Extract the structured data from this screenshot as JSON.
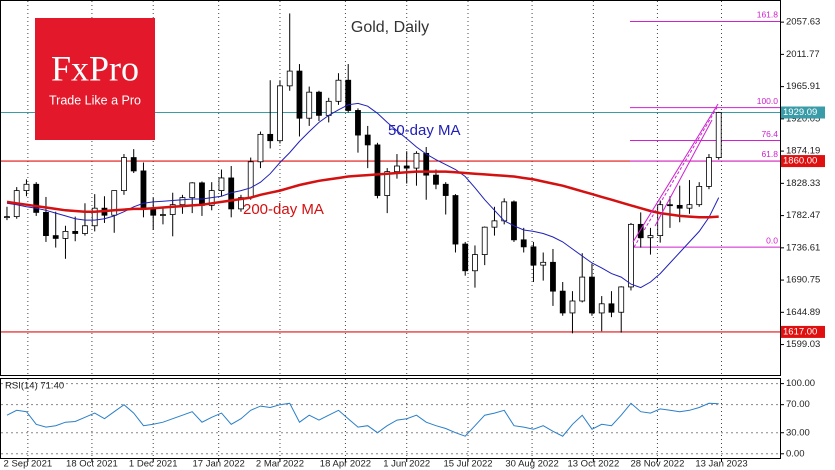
{
  "logo": {
    "title": "FxPro",
    "tagline": "Trade Like a Pro"
  },
  "chart_data": {
    "type": "candlestick",
    "title": "Gold, Daily",
    "x": [
      "2021-08-18",
      "2021-08-25",
      "2021-09-01",
      "2021-09-08",
      "2021-09-15",
      "2021-09-22",
      "2021-09-29",
      "2021-10-06",
      "2021-10-13",
      "2021-10-20",
      "2021-10-27",
      "2021-11-03",
      "2021-11-10",
      "2021-11-17",
      "2021-11-24",
      "2021-12-01",
      "2021-12-08",
      "2021-12-15",
      "2021-12-22",
      "2021-12-29",
      "2022-01-05",
      "2022-01-12",
      "2022-01-19",
      "2022-01-26",
      "2022-02-02",
      "2022-02-09",
      "2022-02-16",
      "2022-02-23",
      "2022-03-02",
      "2022-03-09",
      "2022-03-16",
      "2022-03-23",
      "2022-03-30",
      "2022-04-06",
      "2022-04-13",
      "2022-04-20",
      "2022-04-27",
      "2022-05-04",
      "2022-05-11",
      "2022-05-18",
      "2022-05-25",
      "2022-06-01",
      "2022-06-08",
      "2022-06-15",
      "2022-06-22",
      "2022-06-29",
      "2022-07-06",
      "2022-07-13",
      "2022-07-20",
      "2022-07-27",
      "2022-08-03",
      "2022-08-10",
      "2022-08-17",
      "2022-08-24",
      "2022-08-31",
      "2022-09-07",
      "2022-09-14",
      "2022-09-21",
      "2022-09-28",
      "2022-10-05",
      "2022-10-12",
      "2022-10-19",
      "2022-10-26",
      "2022-11-02",
      "2022-11-09",
      "2022-11-16",
      "2022-11-23",
      "2022-11-30",
      "2022-12-07",
      "2022-12-14",
      "2022-12-21",
      "2022-12-28",
      "2023-01-04",
      "2023-01-11"
    ],
    "open": [
      1780,
      1781,
      1818,
      1827,
      1787,
      1754,
      1750,
      1760,
      1757,
      1768,
      1793,
      1783,
      1818,
      1865,
      1846,
      1792,
      1783,
      1784,
      1798,
      1808,
      1829,
      1797,
      1818,
      1836,
      1792,
      1808,
      1859,
      1898,
      1889,
      1967,
      1988,
      1921,
      1958,
      1925,
      1945,
      1975,
      1932,
      1897,
      1883,
      1811,
      1845,
      1853,
      1850,
      1871,
      1840,
      1827,
      1811,
      1742,
      1704,
      1727,
      1766,
      1775,
      1802,
      1748,
      1738,
      1712,
      1716,
      1675,
      1644,
      1661,
      1695,
      1644,
      1657,
      1645,
      1681,
      1770,
      1751,
      1754,
      1798,
      1797,
      1793,
      1798,
      1824,
      1865
    ],
    "high": [
      1795,
      1823,
      1834,
      1830,
      1809,
      1788,
      1768,
      1781,
      1800,
      1813,
      1810,
      1818,
      1870,
      1877,
      1858,
      1808,
      1793,
      1815,
      1812,
      1830,
      1831,
      1830,
      1848,
      1853,
      1812,
      1865,
      1902,
      1975,
      1975,
      2070,
      1998,
      1966,
      1960,
      1950,
      1985,
      1998,
      1935,
      1910,
      1886,
      1850,
      1870,
      1874,
      1874,
      1880,
      1848,
      1830,
      1813,
      1745,
      1740,
      1767,
      1795,
      1807,
      1804,
      1765,
      1745,
      1730,
      1735,
      1688,
      1675,
      1729,
      1714,
      1668,
      1675,
      1682,
      1772,
      1787,
      1765,
      1804,
      1810,
      1825,
      1833,
      1830,
      1870,
      1930
    ],
    "low": [
      1776,
      1778,
      1810,
      1782,
      1745,
      1737,
      1721,
      1746,
      1754,
      1760,
      1772,
      1758,
      1812,
      1843,
      1780,
      1762,
      1770,
      1753,
      1785,
      1786,
      1782,
      1790,
      1810,
      1780,
      1788,
      1805,
      1850,
      1878,
      1885,
      1960,
      1895,
      1910,
      1917,
      1915,
      1940,
      1929,
      1872,
      1850,
      1807,
      1786,
      1835,
      1828,
      1825,
      1805,
      1820,
      1784,
      1730,
      1697,
      1680,
      1712,
      1754,
      1770,
      1745,
      1730,
      1688,
      1690,
      1654,
      1640,
      1615,
      1659,
      1640,
      1618,
      1638,
      1616,
      1676,
      1737,
      1727,
      1744,
      1765,
      1773,
      1785,
      1795,
      1820,
      1862
    ],
    "close": [
      1781,
      1818,
      1827,
      1787,
      1754,
      1750,
      1760,
      1757,
      1768,
      1793,
      1783,
      1818,
      1865,
      1846,
      1792,
      1783,
      1784,
      1798,
      1808,
      1829,
      1797,
      1818,
      1836,
      1792,
      1808,
      1859,
      1898,
      1889,
      1967,
      1988,
      1921,
      1958,
      1925,
      1945,
      1975,
      1932,
      1897,
      1883,
      1811,
      1845,
      1853,
      1850,
      1871,
      1840,
      1827,
      1811,
      1742,
      1704,
      1727,
      1766,
      1775,
      1802,
      1748,
      1738,
      1712,
      1716,
      1675,
      1644,
      1661,
      1695,
      1644,
      1657,
      1645,
      1681,
      1770,
      1751,
      1754,
      1798,
      1797,
      1793,
      1798,
      1824,
      1865,
      1929.09
    ],
    "series": [
      {
        "name": "50-day MA",
        "color": "#2020b8",
        "values": [
          1800,
          1798,
          1795,
          1793,
          1790,
          1786,
          1782,
          1778,
          1776,
          1776,
          1778,
          1782,
          1788,
          1795,
          1800,
          1802,
          1803,
          1804,
          1805,
          1806,
          1806,
          1808,
          1810,
          1815,
          1818,
          1822,
          1830,
          1842,
          1858,
          1872,
          1888,
          1902,
          1915,
          1925,
          1933,
          1940,
          1942,
          1938,
          1928,
          1915,
          1903,
          1892,
          1880,
          1870,
          1862,
          1855,
          1848,
          1838,
          1822,
          1805,
          1790,
          1775,
          1768,
          1762,
          1760,
          1757,
          1752,
          1745,
          1735,
          1725,
          1715,
          1708,
          1700,
          1695,
          1685,
          1680,
          1688,
          1700,
          1715,
          1730,
          1745,
          1760,
          1780,
          1808
        ]
      },
      {
        "name": "200-day MA",
        "color": "#d41010",
        "values": [
          1802,
          1800,
          1798,
          1796,
          1794,
          1792,
          1790,
          1789,
          1788,
          1788,
          1789,
          1790,
          1791,
          1792,
          1792,
          1793,
          1794,
          1795,
          1796,
          1797,
          1798,
          1800,
          1802,
          1804,
          1806,
          1808,
          1812,
          1815,
          1818,
          1822,
          1826,
          1829,
          1832,
          1834,
          1836,
          1838,
          1839,
          1840,
          1841,
          1842,
          1843,
          1844,
          1845,
          1845,
          1845,
          1845,
          1844,
          1843,
          1842,
          1841,
          1840,
          1839,
          1838,
          1836,
          1834,
          1831,
          1828,
          1825,
          1821,
          1817,
          1813,
          1809,
          1805,
          1801,
          1797,
          1793,
          1789,
          1786,
          1784,
          1782,
          1781,
          1780,
          1780,
          1781
        ]
      }
    ],
    "xlim": [
      "2021-08-13",
      "2023-02-24"
    ],
    "xticks": [
      {
        "value": "2021-09-02",
        "label": "2 Sep 2021"
      },
      {
        "value": "2021-10-18",
        "label": "18 Oct 2021"
      },
      {
        "value": "2021-12-01",
        "label": "1 Dec 2021"
      },
      {
        "value": "2022-01-17",
        "label": "17 Jan 2022"
      },
      {
        "value": "2022-03-02",
        "label": "2 Mar 2022"
      },
      {
        "value": "2022-04-18",
        "label": "18 Apr 2022"
      },
      {
        "value": "2022-06-01",
        "label": "1 Jun 2022"
      },
      {
        "value": "2022-07-15",
        "label": "15 Jul 2022"
      },
      {
        "value": "2022-08-30",
        "label": "30 Aug 2022"
      },
      {
        "value": "2022-10-13",
        "label": "13 Oct 2022"
      },
      {
        "value": "2022-11-28",
        "label": "28 Nov 2022"
      },
      {
        "value": "2023-01-13",
        "label": "13 Jan 2023"
      }
    ],
    "ylim": [
      1560,
      2082
    ],
    "yticks": [
      2057.63,
      2011.77,
      1965.91,
      1920.05,
      1874.19,
      1828.33,
      1782.47,
      1736.61,
      1690.75,
      1644.89,
      1599.03
    ],
    "last_price": {
      "value": 1929.09,
      "color": "#3a9ca8"
    },
    "levels": [
      {
        "value": 1860,
        "label": "1860.00",
        "color": "#e01010"
      },
      {
        "value": 1617,
        "label": "1617.00",
        "color": "#e01010"
      }
    ],
    "fibonacci": {
      "color": "#d020d0",
      "levels": [
        {
          "value": 2058.6,
          "label": "161.8"
        },
        {
          "value": 1936.0,
          "label": "100.0"
        },
        {
          "value": 1889.2,
          "label": "76.4"
        },
        {
          "value": 1860.2,
          "label": "61.8"
        },
        {
          "value": 1737.6,
          "label": "0.0"
        }
      ]
    },
    "rsi": {
      "title": "RSI(14) 71.40",
      "color": "#2a7fc8",
      "values": [
        55,
        62,
        60,
        42,
        38,
        40,
        45,
        46,
        52,
        58,
        50,
        60,
        70,
        58,
        40,
        42,
        45,
        50,
        55,
        60,
        45,
        52,
        58,
        42,
        50,
        62,
        68,
        66,
        70,
        72,
        45,
        55,
        48,
        55,
        62,
        50,
        38,
        40,
        30,
        40,
        48,
        50,
        55,
        45,
        40,
        36,
        30,
        25,
        40,
        55,
        58,
        62,
        40,
        38,
        35,
        40,
        32,
        25,
        42,
        55,
        35,
        42,
        40,
        55,
        72,
        60,
        58,
        64,
        62,
        60,
        62,
        66,
        72,
        71.4
      ],
      "ylim": [
        -6,
        108
      ],
      "yticks": [
        {
          "value": 100,
          "label": "100.00"
        },
        {
          "value": 70,
          "label": "70.00"
        },
        {
          "value": 30,
          "label": "30.00"
        },
        {
          "value": 0,
          "label": "0.00"
        }
      ]
    }
  }
}
